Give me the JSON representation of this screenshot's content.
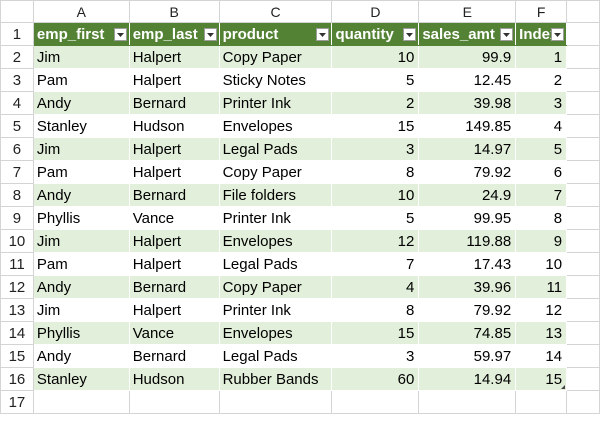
{
  "columns": [
    "A",
    "B",
    "C",
    "D",
    "E",
    "F"
  ],
  "row_numbers": [
    "1",
    "2",
    "3",
    "4",
    "5",
    "6",
    "7",
    "8",
    "9",
    "10",
    "11",
    "12",
    "13",
    "14",
    "15",
    "16",
    "17"
  ],
  "table": {
    "headers": [
      "emp_first",
      "emp_last",
      "product",
      "quantity",
      "sales_amt",
      "Index"
    ],
    "header_color": "#548235",
    "band_color": "#e2efda",
    "rows": [
      [
        "Jim",
        "Halpert",
        "Copy Paper",
        "10",
        "99.9",
        "1"
      ],
      [
        "Pam",
        "Halpert",
        "Sticky Notes",
        "5",
        "12.45",
        "2"
      ],
      [
        "Andy",
        "Bernard",
        "Printer Ink",
        "2",
        "39.98",
        "3"
      ],
      [
        "Stanley",
        "Hudson",
        "Envelopes",
        "15",
        "149.85",
        "4"
      ],
      [
        "Jim",
        "Halpert",
        "Legal Pads",
        "3",
        "14.97",
        "5"
      ],
      [
        "Pam",
        "Halpert",
        "Copy Paper",
        "8",
        "79.92",
        "6"
      ],
      [
        "Andy",
        "Bernard",
        "File folders",
        "10",
        "24.9",
        "7"
      ],
      [
        "Phyllis",
        "Vance",
        "Printer Ink",
        "5",
        "99.95",
        "8"
      ],
      [
        "Jim",
        "Halpert",
        "Envelopes",
        "12",
        "119.88",
        "9"
      ],
      [
        "Pam",
        "Halpert",
        "Legal Pads",
        "7",
        "17.43",
        "10"
      ],
      [
        "Andy",
        "Bernard",
        "Copy Paper",
        "4",
        "39.96",
        "11"
      ],
      [
        "Jim",
        "Halpert",
        "Printer Ink",
        "8",
        "79.92",
        "12"
      ],
      [
        "Phyllis",
        "Vance",
        "Envelopes",
        "15",
        "74.85",
        "13"
      ],
      [
        "Andy",
        "Bernard",
        "Legal Pads",
        "3",
        "59.97",
        "14"
      ],
      [
        "Stanley",
        "Hudson",
        "Rubber Bands",
        "60",
        "14.94",
        "15"
      ]
    ]
  }
}
